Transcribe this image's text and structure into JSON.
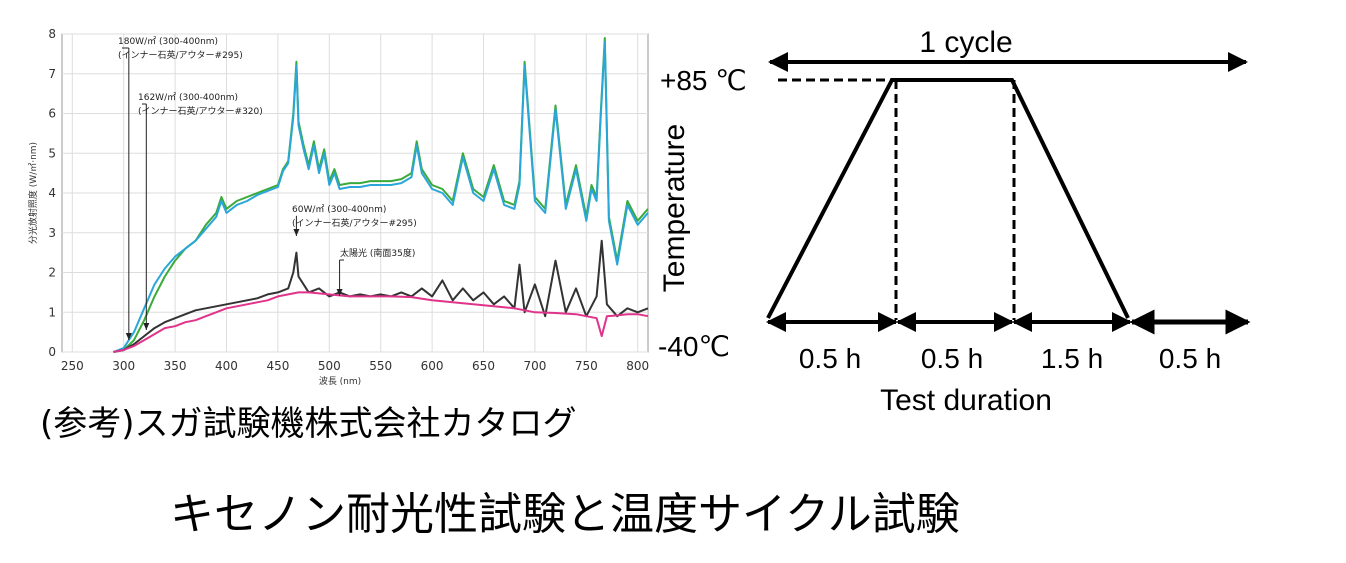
{
  "caption": "(参考)スガ試験機株式会社カタログ",
  "main_title": "キセノン耐光性試験と温度サイクル試験",
  "chart_data": [
    {
      "type": "line",
      "title": "",
      "xlabel": "波長 (nm)",
      "ylabel": "分光放射照度 (W/㎡·nm)",
      "xlim": [
        240,
        810
      ],
      "ylim": [
        0,
        8
      ],
      "x_ticks": [
        "250",
        "300",
        "350",
        "400",
        "450",
        "500",
        "550",
        "600",
        "650",
        "700",
        "750",
        "800"
      ],
      "y_ticks": [
        "0",
        "1",
        "2",
        "3",
        "4",
        "5",
        "6",
        "7",
        "8"
      ],
      "grid": true,
      "annotations": [
        {
          "line1": "180W/㎡ (300-400nm)",
          "line2": "(インナー石英/アウター#295)",
          "x": 305
        },
        {
          "line1": "162W/㎡ (300-400nm)",
          "line2": "(インナー石英/アウター#320)",
          "x": 322
        },
        {
          "line1": "60W/㎡ (300-400nm)",
          "line2": "(インナー石英/アウター#295)",
          "x": 468
        },
        {
          "line1": "太陽光 (南面35度)",
          "line2": "",
          "x": 510
        }
      ],
      "series": [
        {
          "color": "#3aaa3a",
          "x": [
            290,
            300,
            310,
            320,
            330,
            340,
            350,
            360,
            370,
            380,
            390,
            395,
            400,
            410,
            420,
            430,
            440,
            450,
            455,
            460,
            465,
            468,
            470,
            475,
            480,
            485,
            490,
            495,
            500,
            505,
            510,
            520,
            530,
            540,
            550,
            560,
            570,
            580,
            585,
            590,
            600,
            610,
            620,
            630,
            640,
            650,
            660,
            670,
            680,
            685,
            690,
            700,
            710,
            720,
            730,
            740,
            750,
            755,
            760,
            764,
            768,
            772,
            780,
            790,
            800,
            810
          ],
          "y": [
            0.0,
            0.05,
            0.3,
            0.8,
            1.4,
            1.9,
            2.3,
            2.6,
            2.8,
            3.2,
            3.5,
            3.9,
            3.6,
            3.8,
            3.9,
            4.0,
            4.1,
            4.2,
            4.6,
            4.8,
            6.0,
            7.3,
            5.8,
            5.2,
            4.7,
            5.3,
            4.6,
            5.1,
            4.3,
            4.6,
            4.2,
            4.25,
            4.25,
            4.3,
            4.3,
            4.3,
            4.35,
            4.5,
            5.3,
            4.6,
            4.2,
            4.1,
            3.8,
            5.0,
            4.1,
            3.9,
            4.7,
            3.8,
            3.7,
            4.3,
            7.3,
            3.9,
            3.6,
            6.2,
            3.7,
            4.7,
            3.4,
            4.2,
            3.9,
            6.0,
            7.9,
            3.4,
            2.3,
            3.8,
            3.3,
            3.6
          ]
        },
        {
          "color": "#2aa6d8",
          "x": [
            290,
            300,
            310,
            320,
            330,
            340,
            350,
            360,
            370,
            380,
            390,
            395,
            400,
            410,
            420,
            430,
            440,
            450,
            455,
            460,
            465,
            468,
            470,
            475,
            480,
            485,
            490,
            495,
            500,
            505,
            510,
            520,
            530,
            540,
            550,
            560,
            570,
            580,
            585,
            590,
            600,
            610,
            620,
            630,
            640,
            650,
            660,
            670,
            680,
            685,
            690,
            700,
            710,
            720,
            730,
            740,
            750,
            755,
            760,
            764,
            768,
            772,
            780,
            790,
            800,
            810
          ],
          "y": [
            0.0,
            0.1,
            0.5,
            1.1,
            1.7,
            2.1,
            2.4,
            2.6,
            2.8,
            3.1,
            3.4,
            3.8,
            3.5,
            3.7,
            3.8,
            3.95,
            4.05,
            4.15,
            4.55,
            4.75,
            5.9,
            7.2,
            5.7,
            5.1,
            4.6,
            5.2,
            4.5,
            5.0,
            4.2,
            4.5,
            4.1,
            4.15,
            4.15,
            4.2,
            4.2,
            4.2,
            4.25,
            4.4,
            5.2,
            4.5,
            4.1,
            4.0,
            3.7,
            4.9,
            4.0,
            3.8,
            4.6,
            3.7,
            3.6,
            4.2,
            7.2,
            3.8,
            3.5,
            6.1,
            3.6,
            4.6,
            3.3,
            4.1,
            3.8,
            5.9,
            7.8,
            3.3,
            2.2,
            3.7,
            3.2,
            3.5
          ]
        },
        {
          "color": "#333333",
          "x": [
            290,
            300,
            310,
            320,
            330,
            340,
            350,
            360,
            370,
            380,
            390,
            400,
            410,
            420,
            430,
            440,
            450,
            460,
            465,
            468,
            470,
            475,
            480,
            490,
            500,
            510,
            520,
            530,
            540,
            550,
            560,
            570,
            580,
            590,
            600,
            610,
            620,
            630,
            640,
            650,
            660,
            670,
            680,
            685,
            690,
            700,
            710,
            720,
            730,
            740,
            750,
            760,
            765,
            770,
            780,
            790,
            800,
            810
          ],
          "y": [
            0.0,
            0.05,
            0.2,
            0.4,
            0.6,
            0.75,
            0.85,
            0.95,
            1.05,
            1.1,
            1.15,
            1.2,
            1.25,
            1.3,
            1.35,
            1.45,
            1.5,
            1.6,
            2.0,
            2.5,
            1.9,
            1.7,
            1.5,
            1.6,
            1.4,
            1.5,
            1.4,
            1.45,
            1.4,
            1.45,
            1.4,
            1.5,
            1.4,
            1.6,
            1.4,
            1.8,
            1.3,
            1.6,
            1.3,
            1.5,
            1.2,
            1.4,
            1.1,
            2.2,
            1.0,
            1.7,
            0.9,
            2.3,
            1.0,
            1.6,
            0.9,
            1.4,
            2.8,
            1.2,
            0.9,
            1.1,
            1.0,
            1.1
          ]
        },
        {
          "color": "#e0338a",
          "x": [
            290,
            300,
            310,
            320,
            330,
            340,
            350,
            360,
            370,
            380,
            390,
            400,
            410,
            420,
            430,
            440,
            450,
            460,
            470,
            480,
            500,
            520,
            540,
            560,
            580,
            600,
            620,
            640,
            660,
            680,
            700,
            720,
            740,
            750,
            760,
            765,
            770,
            780,
            790,
            800,
            810
          ],
          "y": [
            0.0,
            0.05,
            0.15,
            0.3,
            0.45,
            0.6,
            0.65,
            0.75,
            0.8,
            0.9,
            1.0,
            1.1,
            1.15,
            1.2,
            1.25,
            1.3,
            1.4,
            1.45,
            1.5,
            1.5,
            1.45,
            1.4,
            1.4,
            1.4,
            1.38,
            1.3,
            1.25,
            1.2,
            1.15,
            1.1,
            1.0,
            0.98,
            0.95,
            0.9,
            0.85,
            0.4,
            0.9,
            0.92,
            0.95,
            0.95,
            0.9
          ]
        }
      ]
    },
    {
      "type": "diagram",
      "title": "1 cycle",
      "xlabel": "Test duration",
      "ylabel": "Temperature",
      "y_high_label": "+85 ℃",
      "y_low_label": "-40℃",
      "segments": [
        {
          "label": "0.5 h",
          "kind": "ramp-up"
        },
        {
          "label": "0.5 h",
          "kind": "hold-high"
        },
        {
          "label": "1.5 h",
          "kind": "ramp-down"
        },
        {
          "label": "0.5 h",
          "kind": "hold-low"
        }
      ]
    }
  ]
}
